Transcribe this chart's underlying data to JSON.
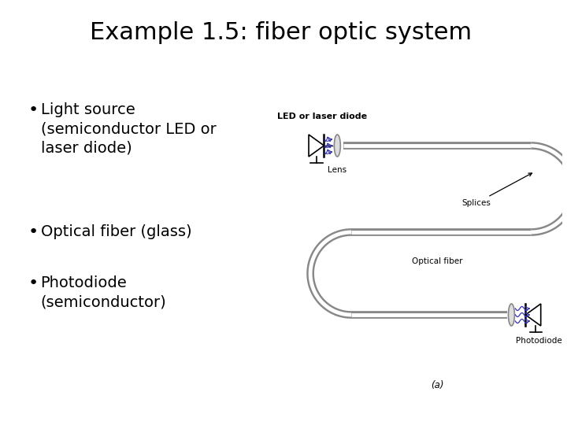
{
  "title": "Example 1.5: fiber optic system",
  "bullets": [
    "Light source\n(semiconductor LED or\nlaser diode)",
    "Optical fiber (glass)",
    "Photodiode\n(semiconductor)"
  ],
  "bg_color": "#ffffff",
  "title_fontsize": 22,
  "bullet_fontsize": 14,
  "diagram_label": "(a)",
  "label_led": "LED or laser diode",
  "label_lens": "Lens",
  "label_splices": "Splices",
  "label_optical_fiber": "Optical fiber",
  "label_photodiode": "Photodiode",
  "diagram_color": "#888888",
  "fiber_inner_color": "#ffffff",
  "blue_color": "#3333aa",
  "label_fontsize": 7.5,
  "label_fontsize_bold": 8
}
